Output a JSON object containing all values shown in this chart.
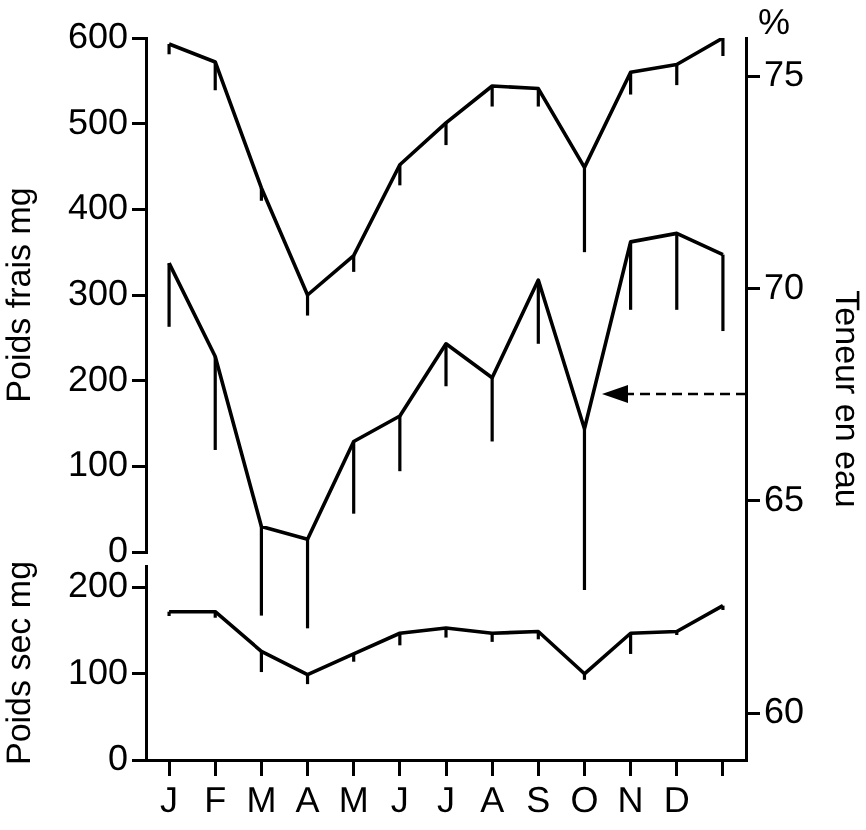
{
  "chart_data": [
    {
      "type": "line",
      "categories": [
        null,
        null,
        null,
        null,
        null,
        null,
        null,
        null,
        null,
        null,
        null,
        null,
        null
      ],
      "ylabel": "Poids frais mg",
      "y2label": "Teneur en eau",
      "ylim": [
        0,
        600
      ],
      "yticks": [
        0,
        100,
        200,
        300,
        400,
        500,
        600
      ],
      "y2lim": [
        58.9,
        75.9
      ],
      "y2ticks": [
        60,
        65,
        70,
        75
      ],
      "annotations": [
        "%"
      ],
      "grid": false,
      "legend": false,
      "marker": "none",
      "line_style": "solid",
      "series": [
        {
          "color": "#000000",
          "axis": "y",
          "values": [
            593,
            572,
            425,
            300,
            346,
            452,
            501,
            544,
            541,
            449,
            560,
            569,
            600
          ],
          "errors": [
            [
              581,
              593
            ],
            [
              539,
              572
            ],
            [
              410,
              425
            ],
            [
              276,
              300
            ],
            [
              327,
              346
            ],
            [
              428,
              452
            ],
            [
              475,
              501
            ],
            [
              520,
              544
            ],
            [
              520,
              541
            ],
            [
              350,
              449
            ],
            [
              534,
              560
            ],
            [
              545,
              569
            ],
            [
              579,
              600
            ]
          ]
        },
        {
          "color": "#000000",
          "axis": "y2",
          "values": [
            70.6,
            68.4,
            64.4,
            64.1,
            66.4,
            67.0,
            68.7,
            67.9,
            70.2,
            66.7,
            71.1,
            71.3,
            70.8
          ],
          "errors": [
            [
              69.1,
              70.6
            ],
            [
              66.2,
              68.4
            ],
            [
              62.3,
              64.4
            ],
            [
              62.0,
              64.1
            ],
            [
              64.7,
              66.4
            ],
            [
              65.7,
              67.0
            ],
            [
              67.7,
              68.7
            ],
            [
              66.4,
              67.9
            ],
            [
              68.7,
              70.2
            ],
            [
              62.9,
              66.7
            ],
            [
              69.5,
              71.1
            ],
            [
              69.5,
              71.3
            ],
            [
              69.0,
              70.8
            ]
          ]
        }
      ]
    },
    {
      "type": "line",
      "categories": [
        "J",
        "F",
        "M",
        "A",
        "M",
        "J",
        "J",
        "A",
        "S",
        "O",
        "N",
        "D",
        null
      ],
      "ylabel": "Poids sec mg",
      "ylim": [
        0,
        225
      ],
      "yticks": [
        0,
        100,
        200
      ],
      "grid": false,
      "legend": false,
      "marker": "none",
      "line_style": "solid",
      "series": [
        {
          "color": "#000000",
          "axis": "y",
          "values": [
            172,
            172,
            126,
            99,
            123,
            147,
            153,
            147,
            149,
            100,
            147,
            149,
            179
          ],
          "errors": [
            [
              167,
              172
            ],
            [
              165,
              172
            ],
            [
              102,
              126
            ],
            [
              88,
              99
            ],
            [
              114,
              123
            ],
            [
              133,
              147
            ],
            [
              142,
              153
            ],
            [
              137,
              147
            ],
            [
              140,
              149
            ],
            [
              93,
              100
            ],
            [
              123,
              147
            ],
            [
              145,
              149
            ],
            [
              174,
              179
            ]
          ]
        }
      ]
    }
  ]
}
